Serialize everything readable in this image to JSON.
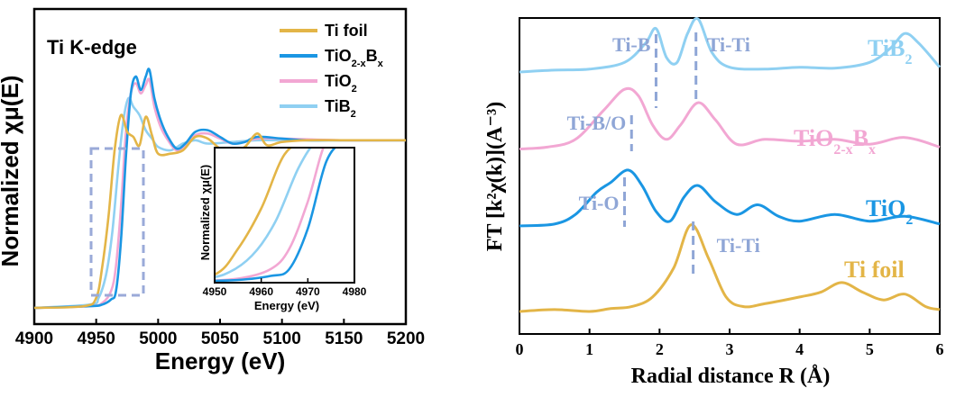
{
  "colors": {
    "gold": "#E3B547",
    "blue": "#1A96E3",
    "pink": "#F2A7D3",
    "lightblue": "#8FD0F2",
    "dash": "#8FA6D6",
    "inset": "#9AAAD8"
  },
  "chart_data": [
    {
      "type": "line",
      "title": "Ti K-edge",
      "xlabel": "Energy (eV)",
      "ylabel": "Normalized χμ(E)",
      "xlim": [
        4900,
        5200
      ],
      "xticks": [
        "4900",
        "4950",
        "5000",
        "5050",
        "5100",
        "5150",
        "5200"
      ],
      "legend_position": "top-right",
      "legend": [
        {
          "base": "Ti foil",
          "sub": "",
          "rest": "",
          "sub2": "",
          "color": "gold"
        },
        {
          "base": "TiO",
          "sub": "2-x",
          "rest": "B",
          "sub2": "x",
          "color": "blue"
        },
        {
          "base": "TiO",
          "sub": "2",
          "rest": "",
          "sub2": "",
          "color": "pink"
        },
        {
          "base": "TiB",
          "sub": "2",
          "rest": "",
          "sub2": "",
          "color": "lightblue"
        }
      ],
      "series": [
        {
          "name": "Ti foil",
          "color": "gold",
          "points": [
            [
              4900,
              0
            ],
            [
              4940,
              0.01
            ],
            [
              4950,
              0.06
            ],
            [
              4955,
              0.25
            ],
            [
              4960,
              0.55
            ],
            [
              4965,
              0.95
            ],
            [
              4970,
              1.15
            ],
            [
              4975,
              1.05
            ],
            [
              4980,
              1.02
            ],
            [
              4985,
              0.97
            ],
            [
              4990,
              1.14
            ],
            [
              4995,
              1.03
            ],
            [
              5000,
              0.92
            ],
            [
              5010,
              0.92
            ],
            [
              5020,
              0.94
            ],
            [
              5030,
              1.02
            ],
            [
              5040,
              1.01
            ],
            [
              5050,
              0.95
            ],
            [
              5060,
              0.93
            ],
            [
              5070,
              0.96
            ],
            [
              5080,
              1.04
            ],
            [
              5088,
              0.97
            ],
            [
              5100,
              0.99
            ],
            [
              5120,
              1.0
            ],
            [
              5150,
              1.0
            ],
            [
              5200,
              1.0
            ]
          ]
        },
        {
          "name": "TiO2-xBx",
          "color": "blue",
          "points": [
            [
              4900,
              0
            ],
            [
              4945,
              0.01
            ],
            [
              4955,
              0.02
            ],
            [
              4962,
              0.05
            ],
            [
              4966,
              0.1
            ],
            [
              4970,
              0.4
            ],
            [
              4974,
              0.9
            ],
            [
              4978,
              1.28
            ],
            [
              4982,
              1.38
            ],
            [
              4986,
              1.3
            ],
            [
              4990,
              1.38
            ],
            [
              4993,
              1.42
            ],
            [
              4997,
              1.25
            ],
            [
              5002,
              1.12
            ],
            [
              5008,
              1.02
            ],
            [
              5015,
              0.95
            ],
            [
              5022,
              0.98
            ],
            [
              5030,
              1.05
            ],
            [
              5040,
              1.06
            ],
            [
              5050,
              1.02
            ],
            [
              5060,
              0.98
            ],
            [
              5070,
              0.99
            ],
            [
              5080,
              1.02
            ],
            [
              5100,
              1.01
            ],
            [
              5120,
              1.0
            ],
            [
              5150,
              1.0
            ],
            [
              5200,
              1.0
            ]
          ]
        },
        {
          "name": "TiO2",
          "color": "pink",
          "points": [
            [
              4900,
              0
            ],
            [
              4945,
              0.01
            ],
            [
              4955,
              0.03
            ],
            [
              4962,
              0.1
            ],
            [
              4966,
              0.25
            ],
            [
              4970,
              0.6
            ],
            [
              4974,
              1.05
            ],
            [
              4978,
              1.28
            ],
            [
              4982,
              1.34
            ],
            [
              4986,
              1.28
            ],
            [
              4990,
              1.33
            ],
            [
              4993,
              1.36
            ],
            [
              4997,
              1.2
            ],
            [
              5002,
              1.08
            ],
            [
              5008,
              1.0
            ],
            [
              5015,
              0.94
            ],
            [
              5022,
              0.97
            ],
            [
              5030,
              1.03
            ],
            [
              5040,
              1.04
            ],
            [
              5050,
              1.01
            ],
            [
              5060,
              0.98
            ],
            [
              5070,
              0.99
            ],
            [
              5080,
              1.01
            ],
            [
              5100,
              1.01
            ],
            [
              5150,
              1.0
            ],
            [
              5200,
              1.0
            ]
          ]
        },
        {
          "name": "TiB2",
          "color": "lightblue",
          "points": [
            [
              4900,
              0
            ],
            [
              4945,
              0.02
            ],
            [
              4952,
              0.06
            ],
            [
              4958,
              0.2
            ],
            [
              4963,
              0.45
            ],
            [
              4968,
              0.85
            ],
            [
              4972,
              1.12
            ],
            [
              4976,
              1.25
            ],
            [
              4980,
              1.2
            ],
            [
              4985,
              1.15
            ],
            [
              4990,
              1.06
            ],
            [
              4995,
              1.01
            ],
            [
              5000,
              0.96
            ],
            [
              5010,
              0.94
            ],
            [
              5020,
              0.98
            ],
            [
              5030,
              1.0
            ],
            [
              5040,
              0.98
            ],
            [
              5060,
              0.99
            ],
            [
              5080,
              1.0
            ],
            [
              5100,
              1.0
            ],
            [
              5150,
              1.0
            ],
            [
              5200,
              1.0
            ]
          ]
        }
      ],
      "inset": {
        "xlabel": "Energy (eV)",
        "ylabel": "Normalized χμ(E)",
        "xlim": [
          4950,
          4980
        ],
        "xticks": [
          "4950",
          "4960",
          "4970",
          "4980"
        ]
      }
    },
    {
      "type": "line",
      "xlabel": "Radial distance R (Å)",
      "ylabel": "FT [k²χ(k)](A⁻³)",
      "xlim": [
        0,
        6
      ],
      "xticks": [
        "0",
        "1",
        "2",
        "3",
        "4",
        "5",
        "6"
      ],
      "series": [
        {
          "name": "TiB2",
          "color": "lightblue",
          "label_base": "TiB",
          "label_sub": "2",
          "label_rest": "",
          "label_sub2": "",
          "offset": 2.8,
          "points": [
            [
              0,
              0
            ],
            [
              0.5,
              0.02
            ],
            [
              1.0,
              0.03
            ],
            [
              1.5,
              0.1
            ],
            [
              1.8,
              0.3
            ],
            [
              1.95,
              0.45
            ],
            [
              2.1,
              0.15
            ],
            [
              2.25,
              0.1
            ],
            [
              2.4,
              0.4
            ],
            [
              2.55,
              0.55
            ],
            [
              2.75,
              0.2
            ],
            [
              3.0,
              0.05
            ],
            [
              3.5,
              0.03
            ],
            [
              4.0,
              0.05
            ],
            [
              4.5,
              0.04
            ],
            [
              5.0,
              0.1
            ],
            [
              5.3,
              0.25
            ],
            [
              5.5,
              0.4
            ],
            [
              5.7,
              0.3
            ],
            [
              6,
              0.05
            ]
          ]
        },
        {
          "name": "TiO2-xBx",
          "color": "pink",
          "label_base": "TiO",
          "label_sub": "2-x",
          "label_rest": "B",
          "label_sub2": "x",
          "offset": 1.9,
          "points": [
            [
              0,
              0
            ],
            [
              0.4,
              0.02
            ],
            [
              0.8,
              0.1
            ],
            [
              1.2,
              0.4
            ],
            [
              1.5,
              0.62
            ],
            [
              1.7,
              0.55
            ],
            [
              1.9,
              0.25
            ],
            [
              2.1,
              0.1
            ],
            [
              2.3,
              0.25
            ],
            [
              2.55,
              0.48
            ],
            [
              2.8,
              0.3
            ],
            [
              3.1,
              0.05
            ],
            [
              3.5,
              0.1
            ],
            [
              4.0,
              0.08
            ],
            [
              4.5,
              0.1
            ],
            [
              5.0,
              0.05
            ],
            [
              5.5,
              0.12
            ],
            [
              6,
              0.02
            ]
          ]
        },
        {
          "name": "TiO2",
          "color": "blue",
          "label_base": "TiO",
          "label_sub": "2",
          "label_rest": "",
          "label_sub2": "",
          "offset": 1.0,
          "points": [
            [
              0,
              0
            ],
            [
              0.5,
              0.02
            ],
            [
              0.8,
              0.12
            ],
            [
              1.1,
              0.35
            ],
            [
              1.3,
              0.45
            ],
            [
              1.55,
              0.58
            ],
            [
              1.75,
              0.42
            ],
            [
              1.95,
              0.15
            ],
            [
              2.15,
              0.05
            ],
            [
              2.35,
              0.3
            ],
            [
              2.55,
              0.42
            ],
            [
              2.8,
              0.25
            ],
            [
              3.1,
              0.12
            ],
            [
              3.4,
              0.22
            ],
            [
              3.7,
              0.1
            ],
            [
              4.0,
              0.05
            ],
            [
              4.5,
              0.12
            ],
            [
              5.0,
              0.05
            ],
            [
              5.5,
              0.1
            ],
            [
              6,
              0.02
            ]
          ]
        },
        {
          "name": "Ti foil",
          "color": "gold",
          "label_base": "Ti foil",
          "label_sub": "",
          "label_rest": "",
          "label_sub2": "",
          "offset": 0.0,
          "points": [
            [
              0,
              0
            ],
            [
              0.5,
              0.02
            ],
            [
              1.0,
              0.0
            ],
            [
              1.3,
              0.03
            ],
            [
              1.6,
              0.05
            ],
            [
              1.9,
              0.15
            ],
            [
              2.2,
              0.45
            ],
            [
              2.45,
              0.9
            ],
            [
              2.7,
              0.55
            ],
            [
              2.95,
              0.15
            ],
            [
              3.2,
              0.05
            ],
            [
              3.5,
              0.08
            ],
            [
              4.0,
              0.15
            ],
            [
              4.3,
              0.2
            ],
            [
              4.6,
              0.3
            ],
            [
              4.9,
              0.2
            ],
            [
              5.2,
              0.12
            ],
            [
              5.5,
              0.18
            ],
            [
              5.8,
              0.05
            ],
            [
              6,
              0.02
            ]
          ]
        }
      ],
      "annotations": [
        {
          "label": "Ti-B",
          "x": 1.95,
          "series": "TiB2"
        },
        {
          "label": "Ti-Ti",
          "x": 2.52,
          "series": "TiB2"
        },
        {
          "label": "Ti-B/O",
          "x": 1.6,
          "series": "TiO2-xBx"
        },
        {
          "label": "Ti-O",
          "x": 1.5,
          "series": "TiO2"
        },
        {
          "label": "Ti-Ti",
          "x": 2.48,
          "series": "Ti foil"
        }
      ]
    }
  ]
}
